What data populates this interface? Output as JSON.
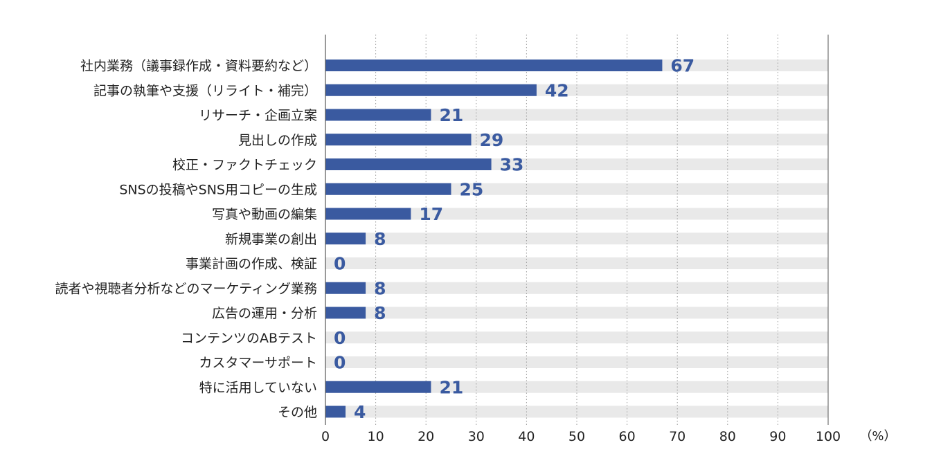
{
  "chart_data": {
    "type": "bar",
    "orientation": "horizontal",
    "categories": [
      "社内業務（議事録作成・資料要約など）",
      "記事の執筆や支援（リライト・補完）",
      "リサーチ・企画立案",
      "見出しの作成",
      "校正・ファクトチェック",
      "SNSの投稿やSNS用コピーの生成",
      "写真や動画の編集",
      "新規事業の創出",
      "事業計画の作成、検証",
      "読者や視聴者分析などのマーケティング業務",
      "広告の運用・分析",
      "コンテンツのABテスト",
      "カスタマーサポート",
      "特に活用していない",
      "その他"
    ],
    "values": [
      67,
      42,
      21,
      29,
      33,
      25,
      17,
      8,
      0,
      8,
      8,
      0,
      0,
      21,
      4
    ],
    "value_labels": [
      "67",
      "42",
      "21",
      "29",
      "33",
      "25",
      "17",
      "8",
      "0",
      "8",
      "8",
      "0",
      "0",
      "21",
      "4"
    ],
    "xlim": [
      0,
      100
    ],
    "x_ticks": [
      "0",
      "10",
      "20",
      "30",
      "40",
      "50",
      "60",
      "70",
      "80",
      "90",
      "100"
    ],
    "unit": "（%）",
    "grid": true,
    "colors": {
      "bar": "#3a5aa0",
      "track": "#e9e9e9",
      "value_text": "#3a5aa0",
      "axis": "#555555",
      "grid": "#999999"
    }
  }
}
